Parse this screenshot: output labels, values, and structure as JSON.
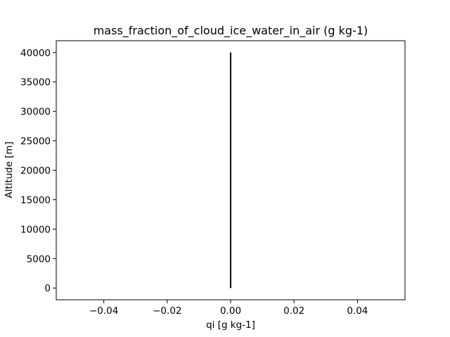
{
  "chart_data": {
    "type": "line",
    "title": "mass_fraction_of_cloud_ice_water_in_air (g kg-1)",
    "xlabel": "qi [g kg-1]",
    "ylabel": "Altitude [m]",
    "xlim": [
      -0.055,
      0.055
    ],
    "ylim": [
      -2000,
      42000
    ],
    "xticks": [
      -0.04,
      -0.02,
      0.0,
      0.02,
      0.04
    ],
    "xtick_labels": [
      "−0.04",
      "−0.02",
      "0.00",
      "0.02",
      "0.04"
    ],
    "yticks": [
      0,
      5000,
      10000,
      15000,
      20000,
      25000,
      30000,
      35000,
      40000
    ],
    "ytick_labels": [
      "0",
      "5000",
      "10000",
      "15000",
      "20000",
      "25000",
      "30000",
      "35000",
      "40000"
    ],
    "grid": false,
    "series": [
      {
        "color": "#000000",
        "x": [
          0.0,
          0.0
        ],
        "y": [
          0,
          40000
        ]
      }
    ]
  }
}
